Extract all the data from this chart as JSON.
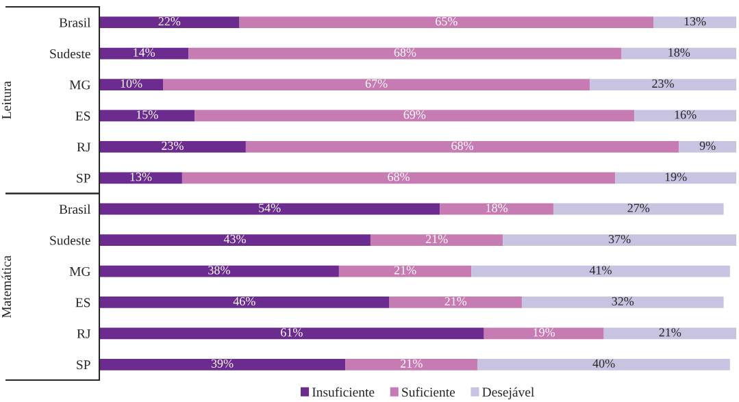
{
  "chart_data": [
    {
      "type": "bar",
      "orientation": "horizontal",
      "stacked": true,
      "ylabel": "Leitura",
      "categories": [
        "Brasil",
        "Sudeste",
        "MG",
        "ES",
        "RJ",
        "SP"
      ],
      "tick_labels": "y",
      "series": [
        {
          "color": "#6c2b8e",
          "values": [
            22,
            14,
            10,
            15,
            23,
            13
          ],
          "value_labels": [
            "22%",
            "14%",
            "10%",
            "15%",
            "23%",
            "13%"
          ]
        },
        {
          "color": "#c77bb3",
          "values": [
            65,
            68,
            67,
            69,
            68,
            68
          ],
          "value_labels": [
            "65%",
            "68%",
            "67%",
            "69%",
            "68%",
            "68%"
          ]
        },
        {
          "color": "#c8c3e1",
          "values": [
            13,
            18,
            23,
            16,
            9,
            19
          ],
          "value_labels": [
            "13%",
            "18%",
            "23%",
            "16%",
            "9%",
            "19%"
          ]
        }
      ]
    },
    {
      "type": "bar",
      "orientation": "horizontal",
      "stacked": true,
      "ylabel": "Matemática",
      "categories": [
        "Brasil",
        "Sudeste",
        "MG",
        "ES",
        "RJ",
        "SP"
      ],
      "tick_labels": "y",
      "legend": "bottom",
      "series": [
        {
          "name": "Insuficiente",
          "color": "#6c2b8e",
          "values": [
            54,
            43,
            38,
            46,
            61,
            39
          ],
          "value_labels": [
            "54%",
            "43%",
            "38%",
            "46%",
            "61%",
            "39%"
          ]
        },
        {
          "name": "Suficiente",
          "color": "#c77bb3",
          "values": [
            18,
            21,
            21,
            21,
            19,
            21
          ],
          "value_labels": [
            "18%",
            "21%",
            "21%",
            "21%",
            "19%",
            "21%"
          ]
        },
        {
          "name": "Desejável",
          "color": "#c8c3e1",
          "values": [
            27,
            37,
            41,
            32,
            21,
            40
          ],
          "value_labels": [
            "27%",
            "37%",
            "41%",
            "32%",
            "21%",
            "40%"
          ]
        }
      ]
    }
  ]
}
